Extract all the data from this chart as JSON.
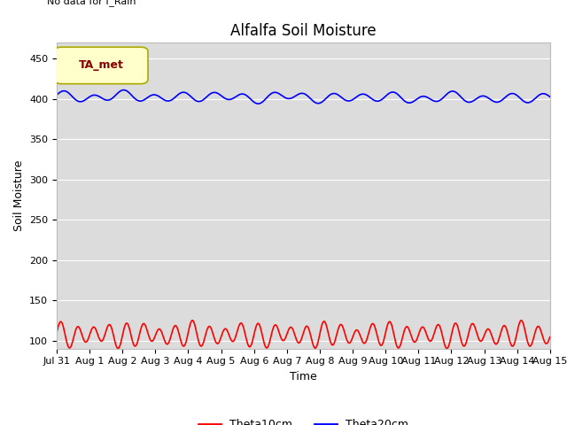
{
  "title": "Alfalfa Soil Moisture",
  "ylabel": "Soil Moisture",
  "xlabel": "Time",
  "top_left_text": "No data for f_Rain",
  "legend_box_text": "TA_met",
  "ylim": [
    90,
    470
  ],
  "yticks": [
    100,
    150,
    200,
    250,
    300,
    350,
    400,
    450
  ],
  "num_days": 15,
  "x_tick_labels": [
    "Jul 31",
    "Aug 1",
    "Aug 2",
    "Aug 3",
    "Aug 4",
    "Aug 5",
    "Aug 6",
    "Aug 7",
    "Aug 8",
    "Aug 9",
    "Aug 10",
    "Aug 11",
    "Aug 12",
    "Aug 13",
    "Aug 14",
    "Aug 15"
  ],
  "blue_line_base": 403,
  "blue_line_amplitude": 5,
  "red_line_base": 107,
  "red_line_amplitude": 12,
  "line_color_blue": "#0000ff",
  "line_color_red": "#ff0000",
  "bg_color": "#dcdcdc",
  "title_fontsize": 12,
  "label_fontsize": 9,
  "tick_fontsize": 8,
  "legend_label_blue": "Theta20cm",
  "legend_label_red": "Theta10cm"
}
